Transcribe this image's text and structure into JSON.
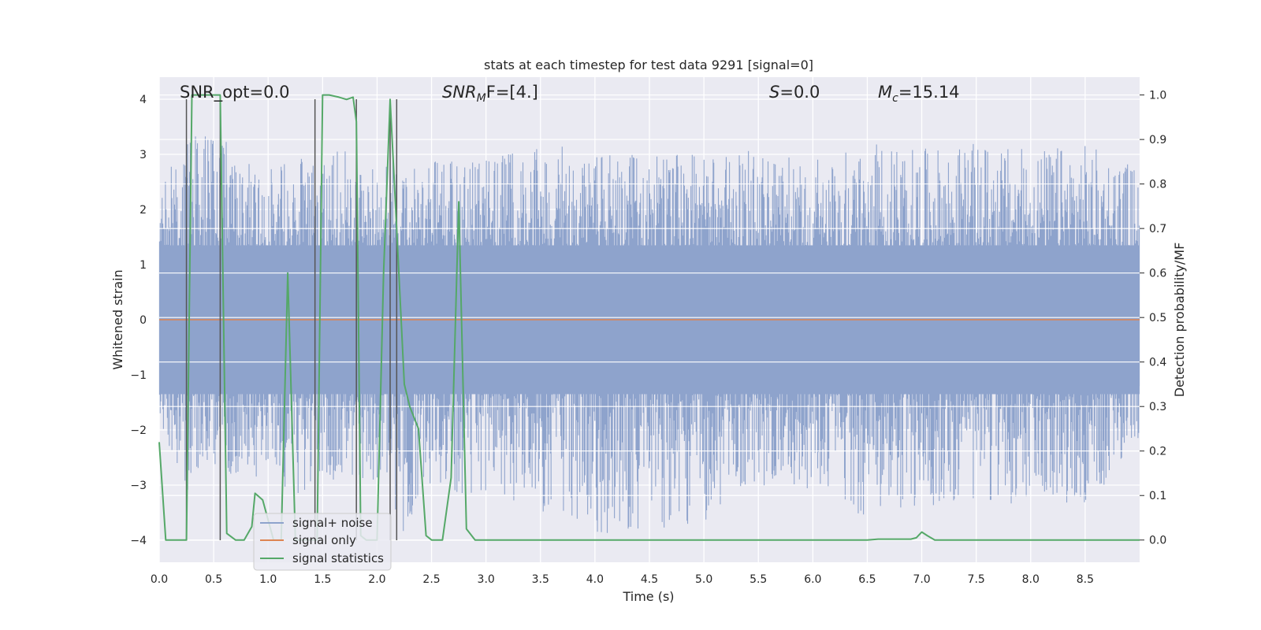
{
  "chart_data": {
    "type": "line",
    "title": "stats at each timestep for test data 9291 [signal=0]",
    "xlabel": "Time (s)",
    "ylabel": "Whitened strain",
    "ylabel_right": "Detection probability/MF",
    "xlim": [
      0.0,
      9.0
    ],
    "ylim": [
      -4.4,
      4.4
    ],
    "ylim_right": [
      -0.05,
      1.04
    ],
    "x_ticks": [
      0.0,
      0.5,
      1.0,
      1.5,
      2.0,
      2.5,
      3.0,
      3.5,
      4.0,
      4.5,
      5.0,
      5.5,
      6.0,
      6.5,
      7.0,
      7.5,
      8.0,
      8.5
    ],
    "x_tick_labels": [
      "0.0",
      "0.5",
      "1.0",
      "1.5",
      "2.0",
      "2.5",
      "3.0",
      "3.5",
      "4.0",
      "4.5",
      "5.0",
      "5.5",
      "6.0",
      "6.5",
      "7.0",
      "7.5",
      "8.0",
      "8.5"
    ],
    "y_ticks": [
      -4,
      -3,
      -2,
      -1,
      0,
      1,
      2,
      3,
      4
    ],
    "y_tick_labels": [
      "−4",
      "−3",
      "−2",
      "−1",
      "0",
      "1",
      "2",
      "3",
      "4"
    ],
    "y_ticks_right": [
      0.0,
      0.1,
      0.2,
      0.3,
      0.4,
      0.5,
      0.6,
      0.7,
      0.8,
      0.9,
      1.0
    ],
    "y_tick_labels_right": [
      "0.0",
      "0.1",
      "0.2",
      "0.3",
      "0.4",
      "0.5",
      "0.6",
      "0.7",
      "0.8",
      "0.9",
      "1.0"
    ],
    "grid": true,
    "legend_placement": "lower-left",
    "annotations": {
      "snr_opt": "SNR_opt=0.0",
      "snr_mf_base": "SNR",
      "snr_mf_sub": "M",
      "snr_mf_rest": "F=[4.]",
      "s_label": "S",
      "s_value": "=0.0",
      "mc_base": "M",
      "mc_sub": "c",
      "mc_value": "=15.14"
    },
    "vertical_markers_x": [
      0.25,
      0.56,
      1.43,
      1.81,
      2.12,
      2.18
    ],
    "series": [
      {
        "name": "signal+ noise",
        "color": "#8ea3cc",
        "noise_envelope": {
          "x": [
            0.0,
            0.25,
            0.5,
            0.75,
            1.0,
            1.25,
            1.5,
            1.75,
            2.0,
            2.25,
            2.5,
            2.75,
            3.0,
            3.5,
            4.0,
            4.5,
            5.0,
            5.5,
            6.0,
            6.5,
            7.0,
            7.5,
            8.0,
            8.5,
            9.0
          ],
          "upper": [
            2.6,
            3.2,
            3.6,
            2.9,
            2.8,
            2.9,
            3.0,
            3.1,
            2.8,
            3.0,
            2.9,
            3.1,
            2.9,
            3.2,
            3.1,
            3.0,
            3.0,
            3.1,
            3.0,
            3.2,
            3.1,
            3.2,
            3.1,
            3.2,
            2.8
          ],
          "lower": [
            -1.8,
            -3.3,
            -2.6,
            -3.1,
            -2.8,
            -3.2,
            -3.0,
            -2.8,
            -3.0,
            -3.9,
            -3.0,
            -3.2,
            -3.1,
            -3.5,
            -3.9,
            -3.8,
            -3.7,
            -3.0,
            -3.1,
            -3.6,
            -3.4,
            -3.3,
            -3.4,
            -3.4,
            -2.3
          ]
        }
      },
      {
        "name": "signal only",
        "color": "#dd8452",
        "x": [
          0.0,
          9.0
        ],
        "y": [
          0.0,
          0.0
        ]
      },
      {
        "name": "signal statistics",
        "color": "#55a868",
        "axis": "right",
        "x": [
          0.0,
          0.06,
          0.1,
          0.2,
          0.25,
          0.3,
          0.35,
          0.5,
          0.56,
          0.62,
          0.7,
          0.78,
          0.85,
          0.88,
          0.95,
          1.05,
          1.12,
          1.18,
          1.25,
          1.3,
          1.4,
          1.45,
          1.5,
          1.56,
          1.65,
          1.72,
          1.78,
          1.81,
          1.85,
          1.9,
          1.95,
          2.0,
          2.06,
          2.12,
          2.18,
          2.25,
          2.3,
          2.38,
          2.45,
          2.5,
          2.6,
          2.68,
          2.75,
          2.82,
          2.9,
          3.0,
          4.0,
          5.0,
          6.0,
          6.5,
          6.6,
          6.9,
          6.95,
          7.0,
          7.05,
          7.12,
          7.2,
          8.0,
          9.0
        ],
        "y": [
          0.22,
          0.0,
          0.0,
          0.0,
          0.0,
          1.0,
          1.0,
          1.0,
          1.0,
          0.015,
          0.0,
          0.0,
          0.03,
          0.105,
          0.09,
          0.0,
          0.0,
          0.6,
          0.0,
          0.0,
          0.0,
          0.0,
          1.0,
          1.0,
          0.995,
          0.99,
          0.995,
          0.94,
          0.01,
          0.0,
          0.0,
          0.0,
          0.6,
          0.99,
          0.7,
          0.35,
          0.3,
          0.25,
          0.01,
          0.0,
          0.0,
          0.14,
          0.76,
          0.025,
          0.0,
          0.0,
          0.0,
          0.0,
          0.0,
          0.0,
          0.002,
          0.002,
          0.005,
          0.018,
          0.01,
          0.0,
          0.0,
          0.0,
          0.0
        ]
      }
    ]
  }
}
